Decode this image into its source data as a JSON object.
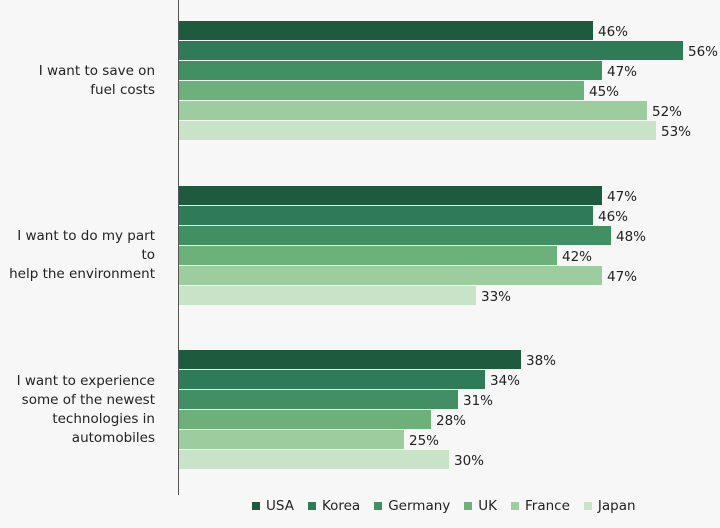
{
  "chart_data": {
    "type": "bar",
    "orientation": "horizontal",
    "categories": [
      "I want to save on fuel costs",
      "I want to do my part to help the environment",
      "I want to experience some of the newest technologies in automobiles"
    ],
    "category_lines": [
      [
        "I want to save on",
        "fuel costs"
      ],
      [
        "I want to do my part to",
        "help the environment"
      ],
      [
        "I want to experience",
        "some of the newest",
        "technologies in",
        "automobiles"
      ]
    ],
    "series": [
      {
        "name": "USA",
        "color": "#1e5a3e",
        "values": [
          46,
          47,
          38
        ]
      },
      {
        "name": "Korea",
        "color": "#2f7a57",
        "values": [
          56,
          46,
          34
        ]
      },
      {
        "name": "Germany",
        "color": "#438f64",
        "values": [
          47,
          48,
          31
        ]
      },
      {
        "name": "UK",
        "color": "#6cb07a",
        "values": [
          45,
          42,
          28
        ]
      },
      {
        "name": "France",
        "color": "#9dcc9f",
        "values": [
          52,
          47,
          25
        ]
      },
      {
        "name": "Japan",
        "color": "#c9e3c8",
        "values": [
          53,
          33,
          30
        ]
      }
    ],
    "value_suffix": "%",
    "xlim": [
      0,
      60
    ],
    "grid": false,
    "legend": "bottom"
  }
}
